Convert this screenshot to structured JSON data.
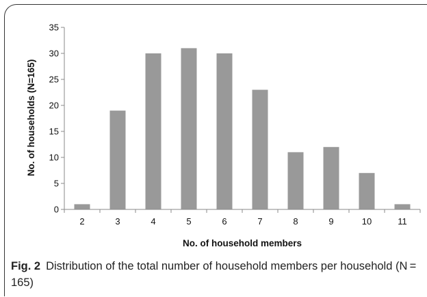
{
  "chart_data": {
    "type": "bar",
    "categories": [
      "2",
      "3",
      "4",
      "5",
      "6",
      "7",
      "8",
      "9",
      "10",
      "11"
    ],
    "values": [
      1,
      19,
      30,
      31,
      30,
      23,
      11,
      12,
      7,
      1
    ],
    "xlabel": "No. of  household members",
    "ylabel": "No. of households (N=165)",
    "ylim": [
      0,
      35
    ],
    "yticks": [
      0,
      5,
      10,
      15,
      20,
      25,
      30,
      35
    ],
    "bar_color": "#999999",
    "grid": false,
    "legend": "none"
  },
  "caption": {
    "label": "Fig. 2",
    "text": "Distribution of the total number of household members per household (N = 165)"
  }
}
